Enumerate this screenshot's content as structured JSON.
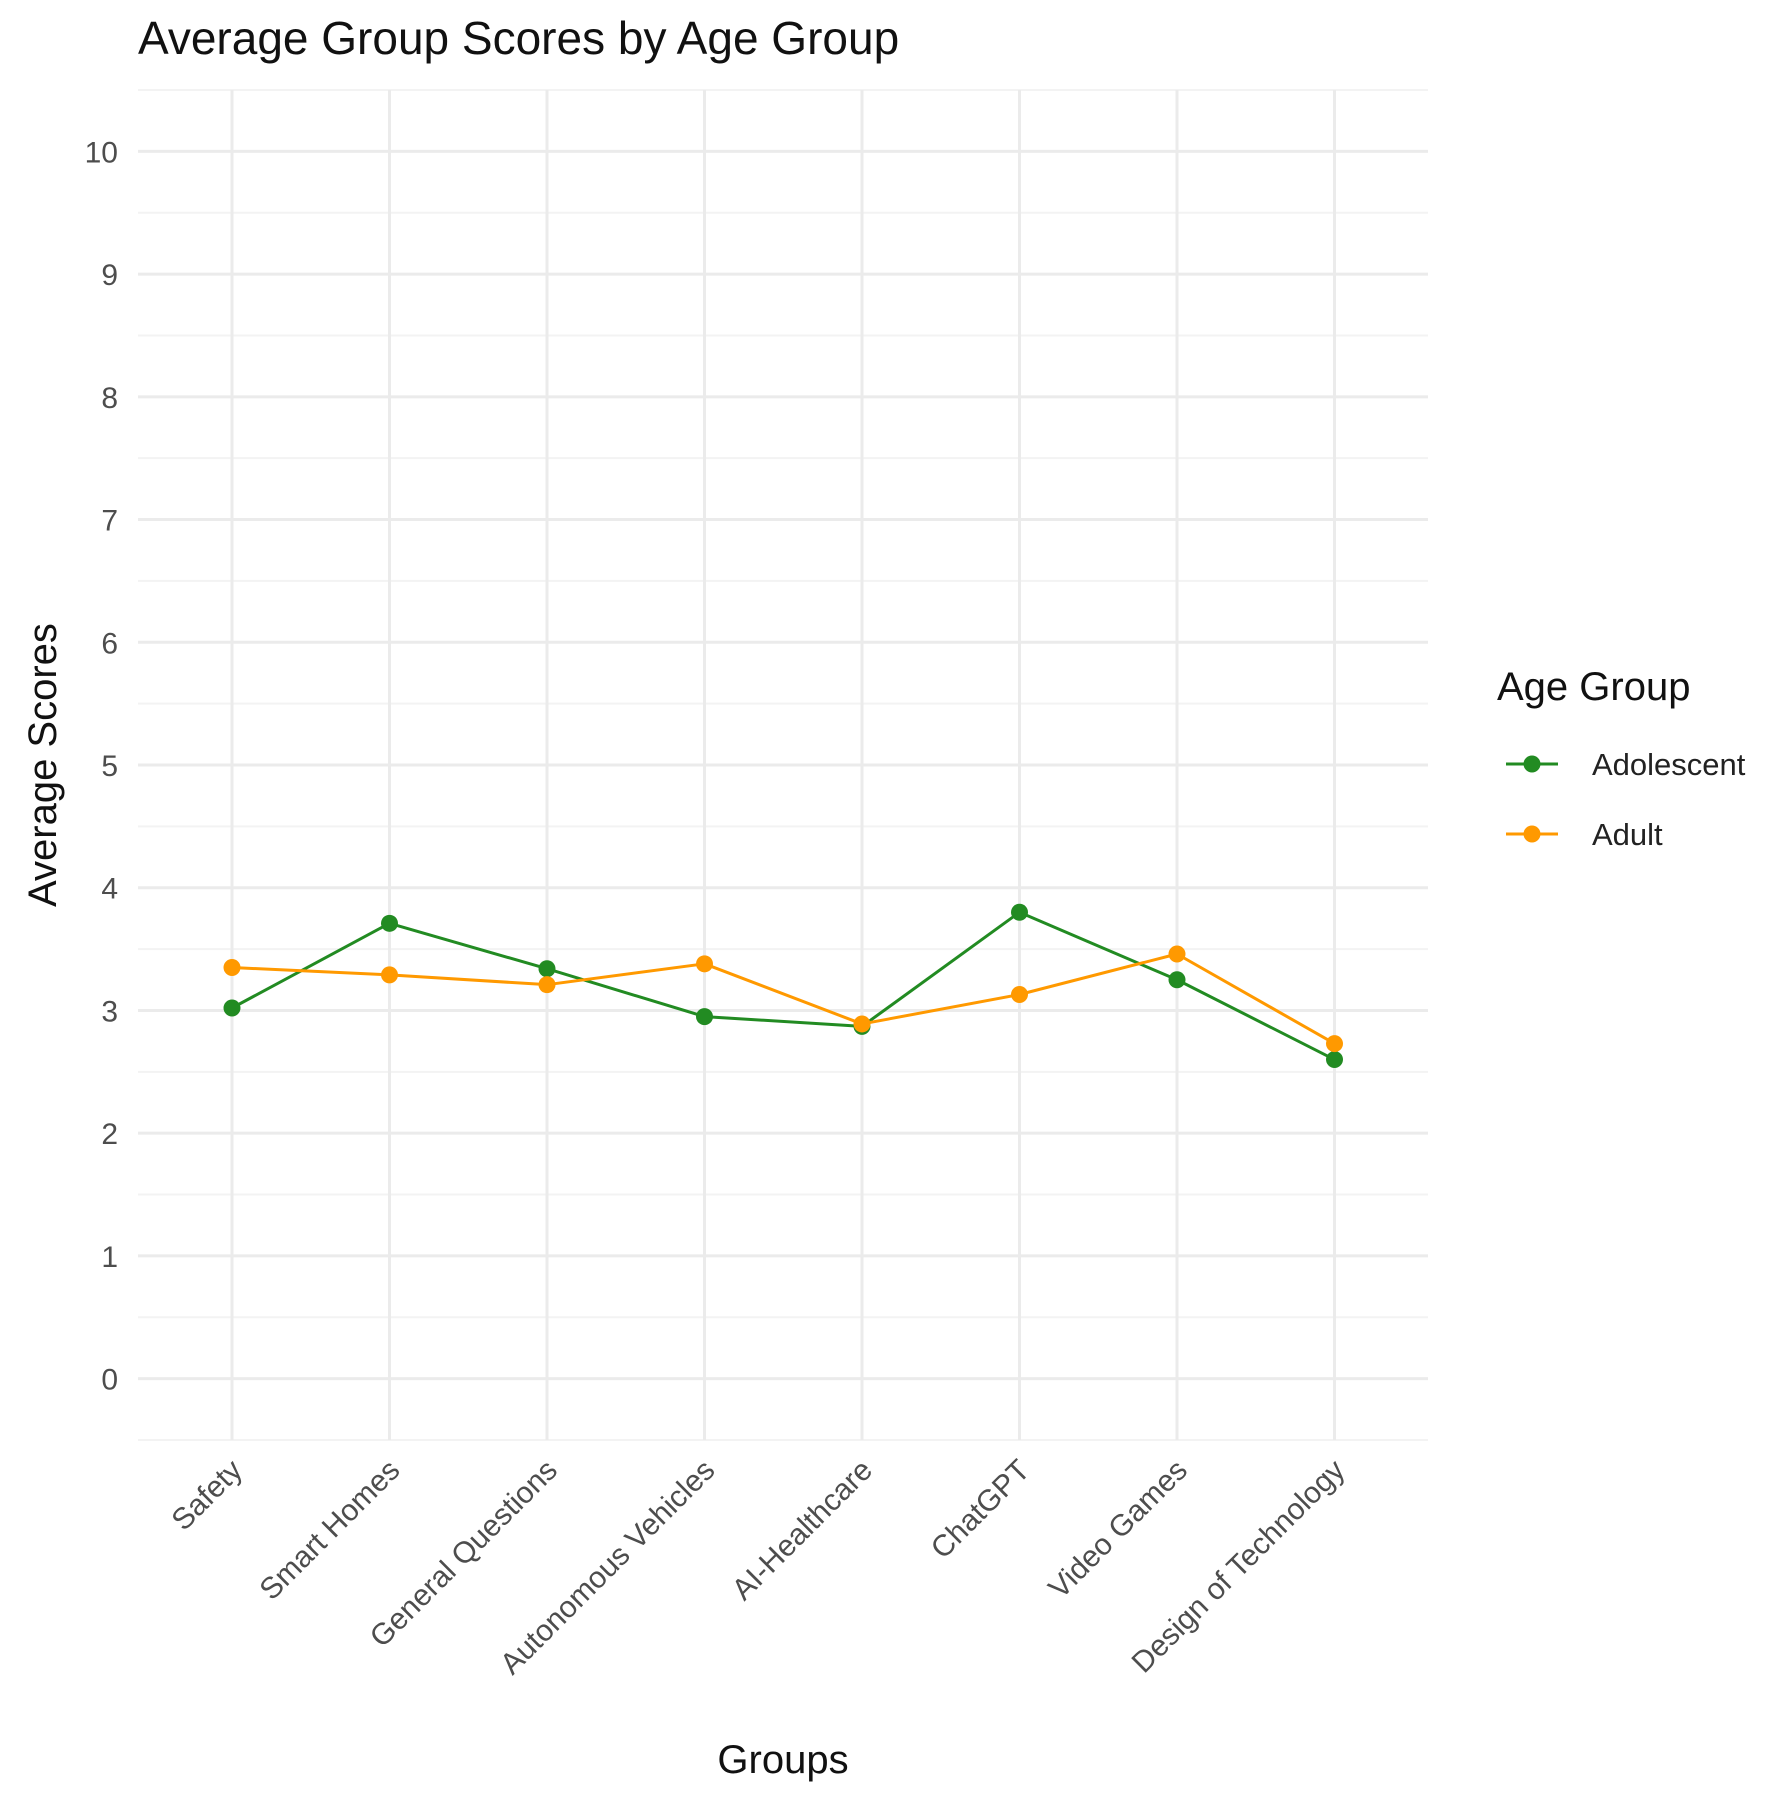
{
  "chart_data": {
    "type": "line",
    "title": "Average Group Scores by Age Group",
    "xlabel": "Groups",
    "ylabel": "Average Scores",
    "categories": [
      "Safety",
      "Smart Homes",
      "General Questions",
      "Autonomous Vehicles",
      "AI-Healthcare",
      "ChatGPT",
      "Video Games",
      "Design of Technology"
    ],
    "yticks": [
      "0",
      "1",
      "2",
      "3",
      "4",
      "5",
      "6",
      "7",
      "8",
      "9",
      "10"
    ],
    "ylim": [
      -0.5,
      10.5
    ],
    "grid": true,
    "legend": {
      "title": "Age Group",
      "position": "right"
    },
    "series": [
      {
        "name": "Adolescent",
        "color": "#228B22",
        "values": [
          3.02,
          3.71,
          3.34,
          2.95,
          2.87,
          3.8,
          3.25,
          2.6
        ]
      },
      {
        "name": "Adult",
        "color": "#FF9900",
        "values": [
          3.35,
          3.29,
          3.21,
          3.38,
          2.89,
          3.13,
          3.46,
          2.73
        ]
      }
    ]
  }
}
